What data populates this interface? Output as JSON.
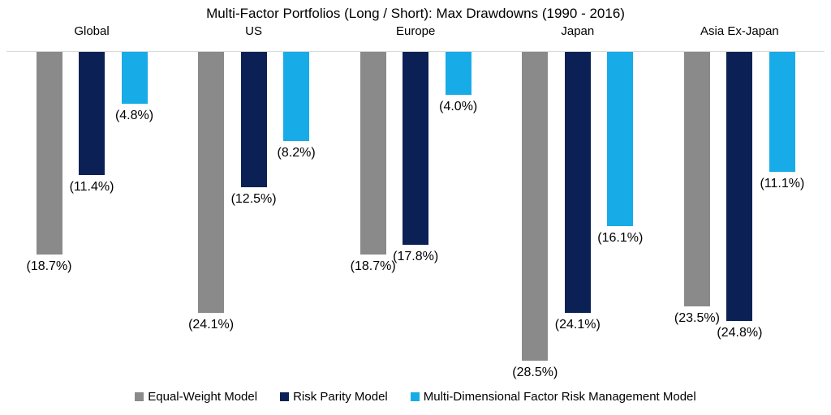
{
  "chart_data": {
    "type": "bar",
    "title": "Multi-Factor Portfolios (Long / Short): Max Drawdowns (1990 - 2016)",
    "orientation": "vertical-negative",
    "categories": [
      "Global",
      "US",
      "Europe",
      "Japan",
      "Asia Ex-Japan"
    ],
    "series": [
      {
        "name": "Equal-Weight Model",
        "color": "#8a8a8a",
        "values": [
          -18.7,
          -24.1,
          -18.7,
          -28.5,
          -23.5
        ],
        "labels": [
          "(18.7%)",
          "(24.1%)",
          "(18.7%)",
          "(28.5%)",
          "(23.5%)"
        ]
      },
      {
        "name": "Risk Parity Model",
        "color": "#0b2155",
        "values": [
          -11.4,
          -12.5,
          -17.8,
          -24.1,
          -24.8
        ],
        "labels": [
          "(11.4%)",
          "(12.5%)",
          "(17.8%)",
          "(24.1%)",
          "(24.8%)"
        ]
      },
      {
        "name": "Multi-Dimensional Factor Risk Management Model",
        "color": "#17ace8",
        "values": [
          -4.8,
          -8.2,
          -4.0,
          -16.1,
          -11.1
        ],
        "labels": [
          "(4.8%)",
          "(8.2%)",
          "(4.0%)",
          "(16.1%)",
          "(11.1%)"
        ]
      }
    ],
    "ylim": [
      -30,
      0
    ],
    "gridlines": false,
    "axis_line_color": "#d9d9d9",
    "legend_position": "bottom",
    "value_label_format": "(abs 0.0%)"
  }
}
